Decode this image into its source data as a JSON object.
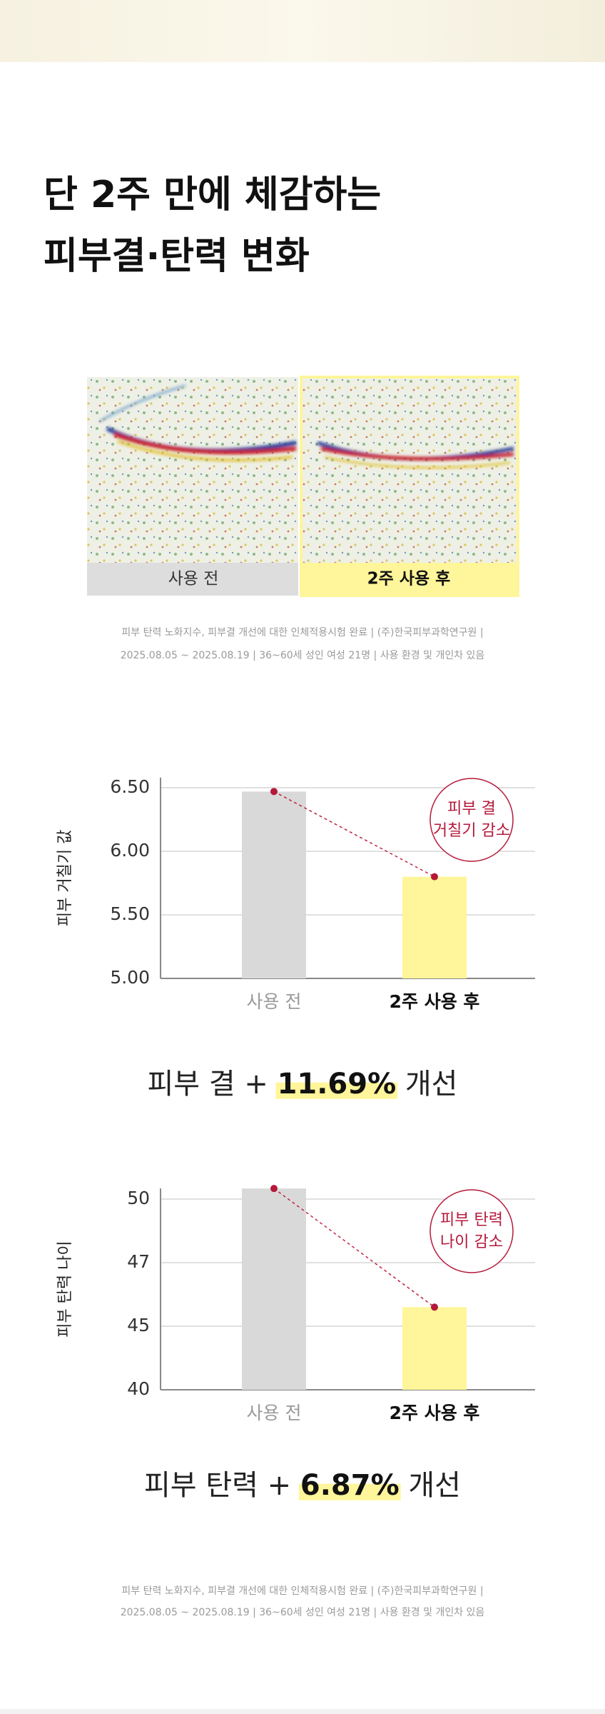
{
  "header": {
    "title": [
      "단 2주 만에 체감하는",
      "피부결·탄력 변화"
    ]
  },
  "comparison": {
    "labels": [
      "사용 전",
      "2주 사용 후"
    ]
  },
  "image_caption": [
    "피부 탄력 노화지수, 피부결 개선에 대한 인체적용시험 완료 | (주)한국피부과학연구원 |",
    "2025.08.05 ~ 2025.08.19 | 36~60세 성인 여성 21명 | 사용 환경 및 개인차 있음"
  ],
  "chart_data": [
    {
      "type": "bar",
      "y_label": "피부 거칠기 값",
      "categories": [
        "사용 전",
        "2주 사용 후"
      ],
      "values": [
        6.47,
        5.8
      ],
      "colors": [
        "#d9d9d9",
        "#fff59a"
      ],
      "ylim": [
        5.0,
        6.58
      ],
      "yticks": [
        {
          "value": 5.0,
          "label": "5.00"
        },
        {
          "value": 5.5,
          "label": "5.50"
        },
        {
          "value": 6.0,
          "label": "6.00"
        },
        {
          "value": 6.5,
          "label": "6.50"
        }
      ],
      "grid": true,
      "annotation": [
        "피부 결",
        "거칠기 감소"
      ]
    },
    {
      "type": "bar",
      "y_label": "피부 탄력 나이",
      "categories": [
        "사용 전",
        "2주 사용 후"
      ],
      "values": [
        50.5,
        45.6
      ],
      "colors": [
        "#d9d9d9",
        "#fff59a"
      ],
      "ylim": [
        40,
        50.5
      ],
      "yticks": [
        40,
        45,
        47,
        50
      ],
      "grid": true,
      "annotation": [
        "피부 탄력",
        "나이 감소"
      ]
    }
  ],
  "results": [
    {
      "prefix": "피부 결 + ",
      "value": "11.69%",
      "suffix": " 개선"
    },
    {
      "prefix": "피부 탄력 + ",
      "value": "6.87%",
      "suffix": " 개선"
    }
  ],
  "footer_note": [
    "피부 탄력 노화지수, 피부결 개선에 대한 인체적용시험 완료 | (주)한국피부과학연구원 |",
    "2025.08.05 ~ 2025.08.19 | 36~60세 성인 여성 21명 | 사용 환경 및 개인차 있음"
  ]
}
